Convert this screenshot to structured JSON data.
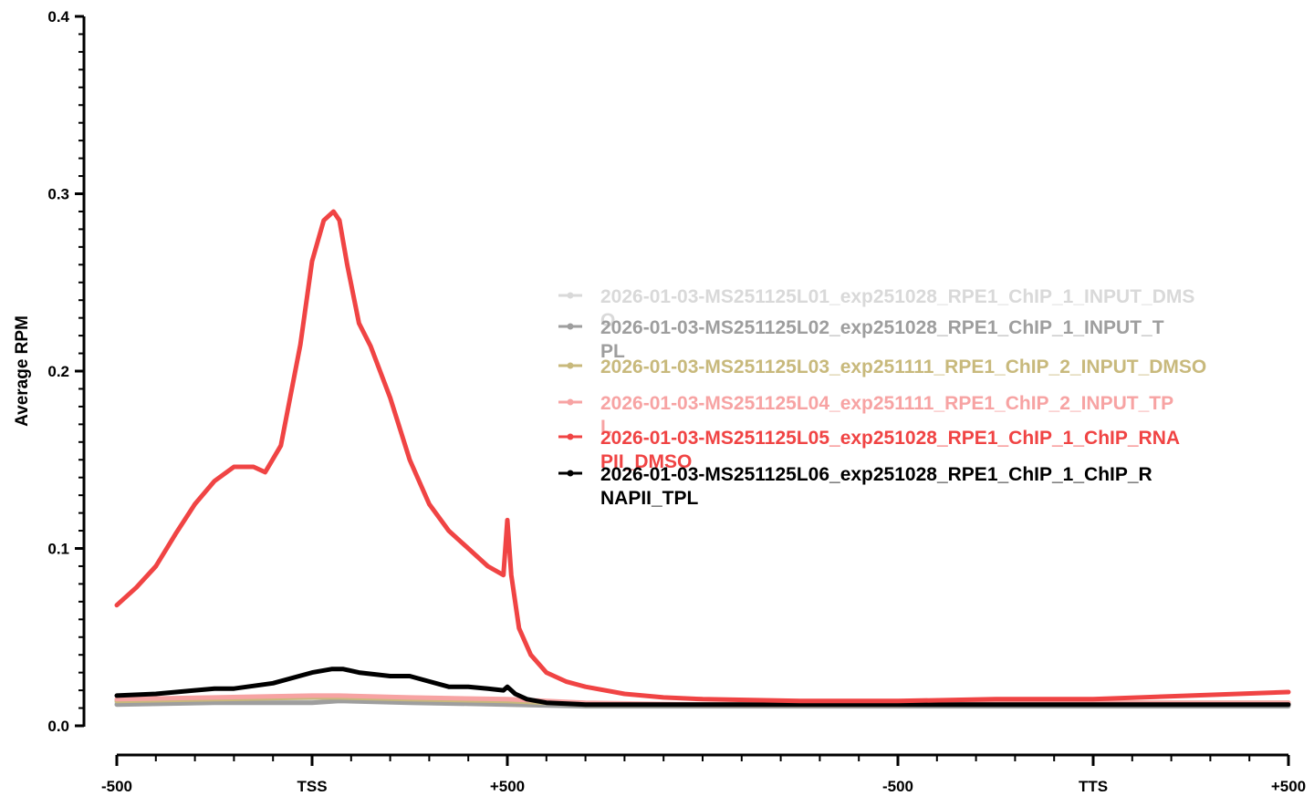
{
  "chart_data": {
    "type": "line",
    "ylabel": "Average RPM",
    "xlabel": "",
    "ylim": [
      0,
      0.4
    ],
    "y_major_ticks": [
      0.0,
      0.1,
      0.2,
      0.3,
      0.4
    ],
    "y_tick_labels": [
      "0.0",
      "0.1",
      "0.2",
      "0.3",
      "0.4"
    ],
    "y_minor_step": 0.01,
    "x_unit_range": [
      0,
      3
    ],
    "x_ticks": [
      {
        "pos": 0.0,
        "label": "-500"
      },
      {
        "pos": 0.5,
        "label": "TSS"
      },
      {
        "pos": 1.0,
        "label": "+500"
      },
      {
        "pos": 2.0,
        "label": "-500"
      },
      {
        "pos": 2.5,
        "label": "TTS"
      },
      {
        "pos": 3.0,
        "label": "+500"
      }
    ],
    "x_minor_step": 0.1,
    "grid": false,
    "legend_position": "right-middle",
    "series": [
      {
        "name": "2026-01-03-MS251125L01_exp251028_RPE1_ChIP_1_INPUT_DMSO",
        "legend_lines": [
          "2026-01-03-MS251125L01_exp251028_RPE1_ChIP_1_INPUT_DMS",
          "O"
        ],
        "color": "#d9d9d9",
        "x": [
          0,
          0.25,
          0.5,
          0.57,
          0.75,
          1.0,
          1.2,
          1.5,
          2.0,
          2.5,
          3.0
        ],
        "y": [
          0.013,
          0.014,
          0.014,
          0.014,
          0.014,
          0.013,
          0.012,
          0.012,
          0.012,
          0.012,
          0.012
        ]
      },
      {
        "name": "2026-01-03-MS251125L02_exp251028_RPE1_ChIP_1_INPUT_TPL",
        "legend_lines": [
          "2026-01-03-MS251125L02_exp251028_RPE1_ChIP_1_INPUT_T",
          "PL"
        ],
        "color": "#9e9e9e",
        "x": [
          0,
          0.25,
          0.5,
          0.57,
          0.75,
          1.0,
          1.2,
          1.5,
          2.0,
          2.5,
          3.0
        ],
        "y": [
          0.012,
          0.013,
          0.013,
          0.014,
          0.013,
          0.012,
          0.011,
          0.011,
          0.011,
          0.011,
          0.011
        ]
      },
      {
        "name": "2026-01-03-MS251125L03_exp251111_RPE1_ChIP_2_INPUT_DMSO",
        "legend_lines": [
          "2026-01-03-MS251125L03_exp251111_RPE1_ChIP_2_INPUT_DMSO"
        ],
        "color": "#c8b97c",
        "x": [
          0,
          0.25,
          0.5,
          0.57,
          0.75,
          1.0,
          1.2,
          1.5,
          2.0,
          2.5,
          3.0
        ],
        "y": [
          0.014,
          0.015,
          0.016,
          0.016,
          0.015,
          0.014,
          0.012,
          0.012,
          0.012,
          0.013,
          0.013
        ]
      },
      {
        "name": "2026-01-03-MS251125L04_exp251111_RPE1_ChIP_2_INPUT_TPL",
        "legend_lines": [
          "2026-01-03-MS251125L04_exp251111_RPE1_ChIP_2_INPUT_TP",
          "L"
        ],
        "color": "#f7a3a3",
        "x": [
          0,
          0.25,
          0.5,
          0.57,
          0.75,
          1.0,
          1.2,
          1.5,
          2.0,
          2.5,
          3.0
        ],
        "y": [
          0.015,
          0.016,
          0.017,
          0.017,
          0.016,
          0.015,
          0.013,
          0.012,
          0.012,
          0.013,
          0.013
        ]
      },
      {
        "name": "2026-01-03-MS251125L05_exp251028_RPE1_ChIP_1_ChIP_RNAPII_DMSO",
        "legend_lines": [
          "2026-01-03-MS251125L05_exp251028_RPE1_ChIP_1_ChIP_RNA",
          "PII_DMSO"
        ],
        "color": "#f04444",
        "x": [
          0,
          0.05,
          0.1,
          0.15,
          0.2,
          0.25,
          0.3,
          0.35,
          0.38,
          0.42,
          0.47,
          0.5,
          0.53,
          0.555,
          0.57,
          0.59,
          0.62,
          0.65,
          0.7,
          0.75,
          0.8,
          0.85,
          0.9,
          0.95,
          0.99,
          1.0,
          1.01,
          1.03,
          1.06,
          1.1,
          1.15,
          1.2,
          1.3,
          1.4,
          1.5,
          1.75,
          2.0,
          2.25,
          2.5,
          2.75,
          3.0
        ],
        "y": [
          0.068,
          0.078,
          0.09,
          0.108,
          0.125,
          0.138,
          0.146,
          0.146,
          0.143,
          0.158,
          0.215,
          0.262,
          0.285,
          0.29,
          0.285,
          0.26,
          0.227,
          0.214,
          0.185,
          0.15,
          0.125,
          0.11,
          0.1,
          0.09,
          0.085,
          0.116,
          0.085,
          0.055,
          0.04,
          0.03,
          0.025,
          0.022,
          0.018,
          0.016,
          0.015,
          0.014,
          0.014,
          0.015,
          0.015,
          0.017,
          0.019
        ]
      },
      {
        "name": "2026-01-03-MS251125L06_exp251028_RPE1_ChIP_1_ChIP_RNAPII_TPL",
        "legend_lines": [
          "2026-01-03-MS251125L06_exp251028_RPE1_ChIP_1_ChIP_R",
          "NAPII_TPL"
        ],
        "color": "#000000",
        "x": [
          0,
          0.1,
          0.2,
          0.25,
          0.3,
          0.4,
          0.5,
          0.55,
          0.58,
          0.62,
          0.7,
          0.75,
          0.8,
          0.85,
          0.9,
          0.95,
          0.99,
          1.0,
          1.02,
          1.05,
          1.1,
          1.2,
          1.5,
          2.0,
          2.5,
          3.0
        ],
        "y": [
          0.017,
          0.018,
          0.02,
          0.021,
          0.021,
          0.024,
          0.03,
          0.032,
          0.032,
          0.03,
          0.028,
          0.028,
          0.025,
          0.022,
          0.022,
          0.021,
          0.02,
          0.022,
          0.018,
          0.015,
          0.013,
          0.012,
          0.012,
          0.012,
          0.012,
          0.012
        ]
      }
    ]
  }
}
